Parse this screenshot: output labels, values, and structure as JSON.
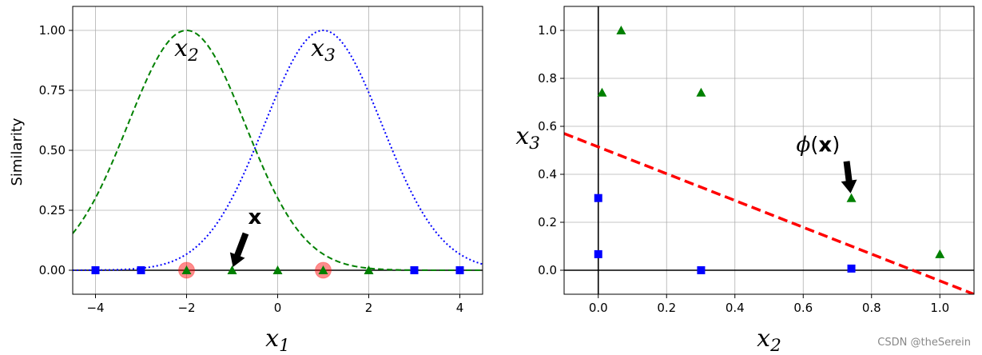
{
  "watermark": "CSDN @theSerein",
  "chart_data": [
    {
      "type": "line",
      "xlabel": "x1",
      "ylabel": "Similarity",
      "xlim": [
        -4.5,
        4.5
      ],
      "ylim": [
        -0.1,
        1.1
      ],
      "xticks": [
        -4,
        -2,
        0,
        2,
        4
      ],
      "xtick_labels": [
        "−4",
        "−2",
        "0",
        "2",
        "4"
      ],
      "yticks": [
        0,
        0.25,
        0.5,
        0.75,
        1.0
      ],
      "ytick_labels": [
        "0.00",
        "0.25",
        "0.50",
        "0.75",
        "1.00"
      ],
      "grid": true,
      "curves": [
        {
          "label": "x2",
          "center": -2,
          "gamma": 0.3,
          "color": "#008000",
          "style": "dashed"
        },
        {
          "label": "x3",
          "center": 1,
          "gamma": 0.3,
          "color": "#0000ff",
          "style": "dotted"
        }
      ],
      "landmarks": [
        -2,
        1
      ],
      "blue_squares": [
        -4,
        -3,
        3,
        4
      ],
      "green_triangles": [
        -2,
        -1,
        0,
        1,
        2
      ],
      "annotation": {
        "text": "x",
        "x": -1,
        "y": 0
      }
    },
    {
      "type": "scatter",
      "xlabel": "x2",
      "ylabel": "x3",
      "xlim": [
        -0.1,
        1.1
      ],
      "ylim": [
        -0.1,
        1.1
      ],
      "xticks": [
        0,
        0.2,
        0.4,
        0.6,
        0.8,
        1.0
      ],
      "xtick_labels": [
        "0.0",
        "0.2",
        "0.4",
        "0.6",
        "0.8",
        "1.0"
      ],
      "yticks": [
        0,
        0.2,
        0.4,
        0.6,
        0.8,
        1.0
      ],
      "ytick_labels": [
        "0.0",
        "0.2",
        "0.4",
        "0.6",
        "0.8",
        "1.0"
      ],
      "grid": true,
      "blue_squares": [
        [
          0.0,
          0.301
        ],
        [
          0.0,
          0.067
        ],
        [
          0.301,
          0.0
        ],
        [
          0.741,
          0.007
        ]
      ],
      "green_triangles": [
        [
          0.011,
          0.741
        ],
        [
          0.067,
          1.0
        ],
        [
          0.301,
          0.741
        ],
        [
          0.741,
          0.301
        ],
        [
          1.0,
          0.067
        ]
      ],
      "boundary": {
        "x": [
          -0.1,
          1.1
        ],
        "y": [
          0.57,
          -0.1
        ],
        "color": "#ff0000",
        "style": "dashed"
      },
      "annotation": {
        "text": "ϕ(x)",
        "x": 0.741,
        "y": 0.301
      }
    }
  ]
}
